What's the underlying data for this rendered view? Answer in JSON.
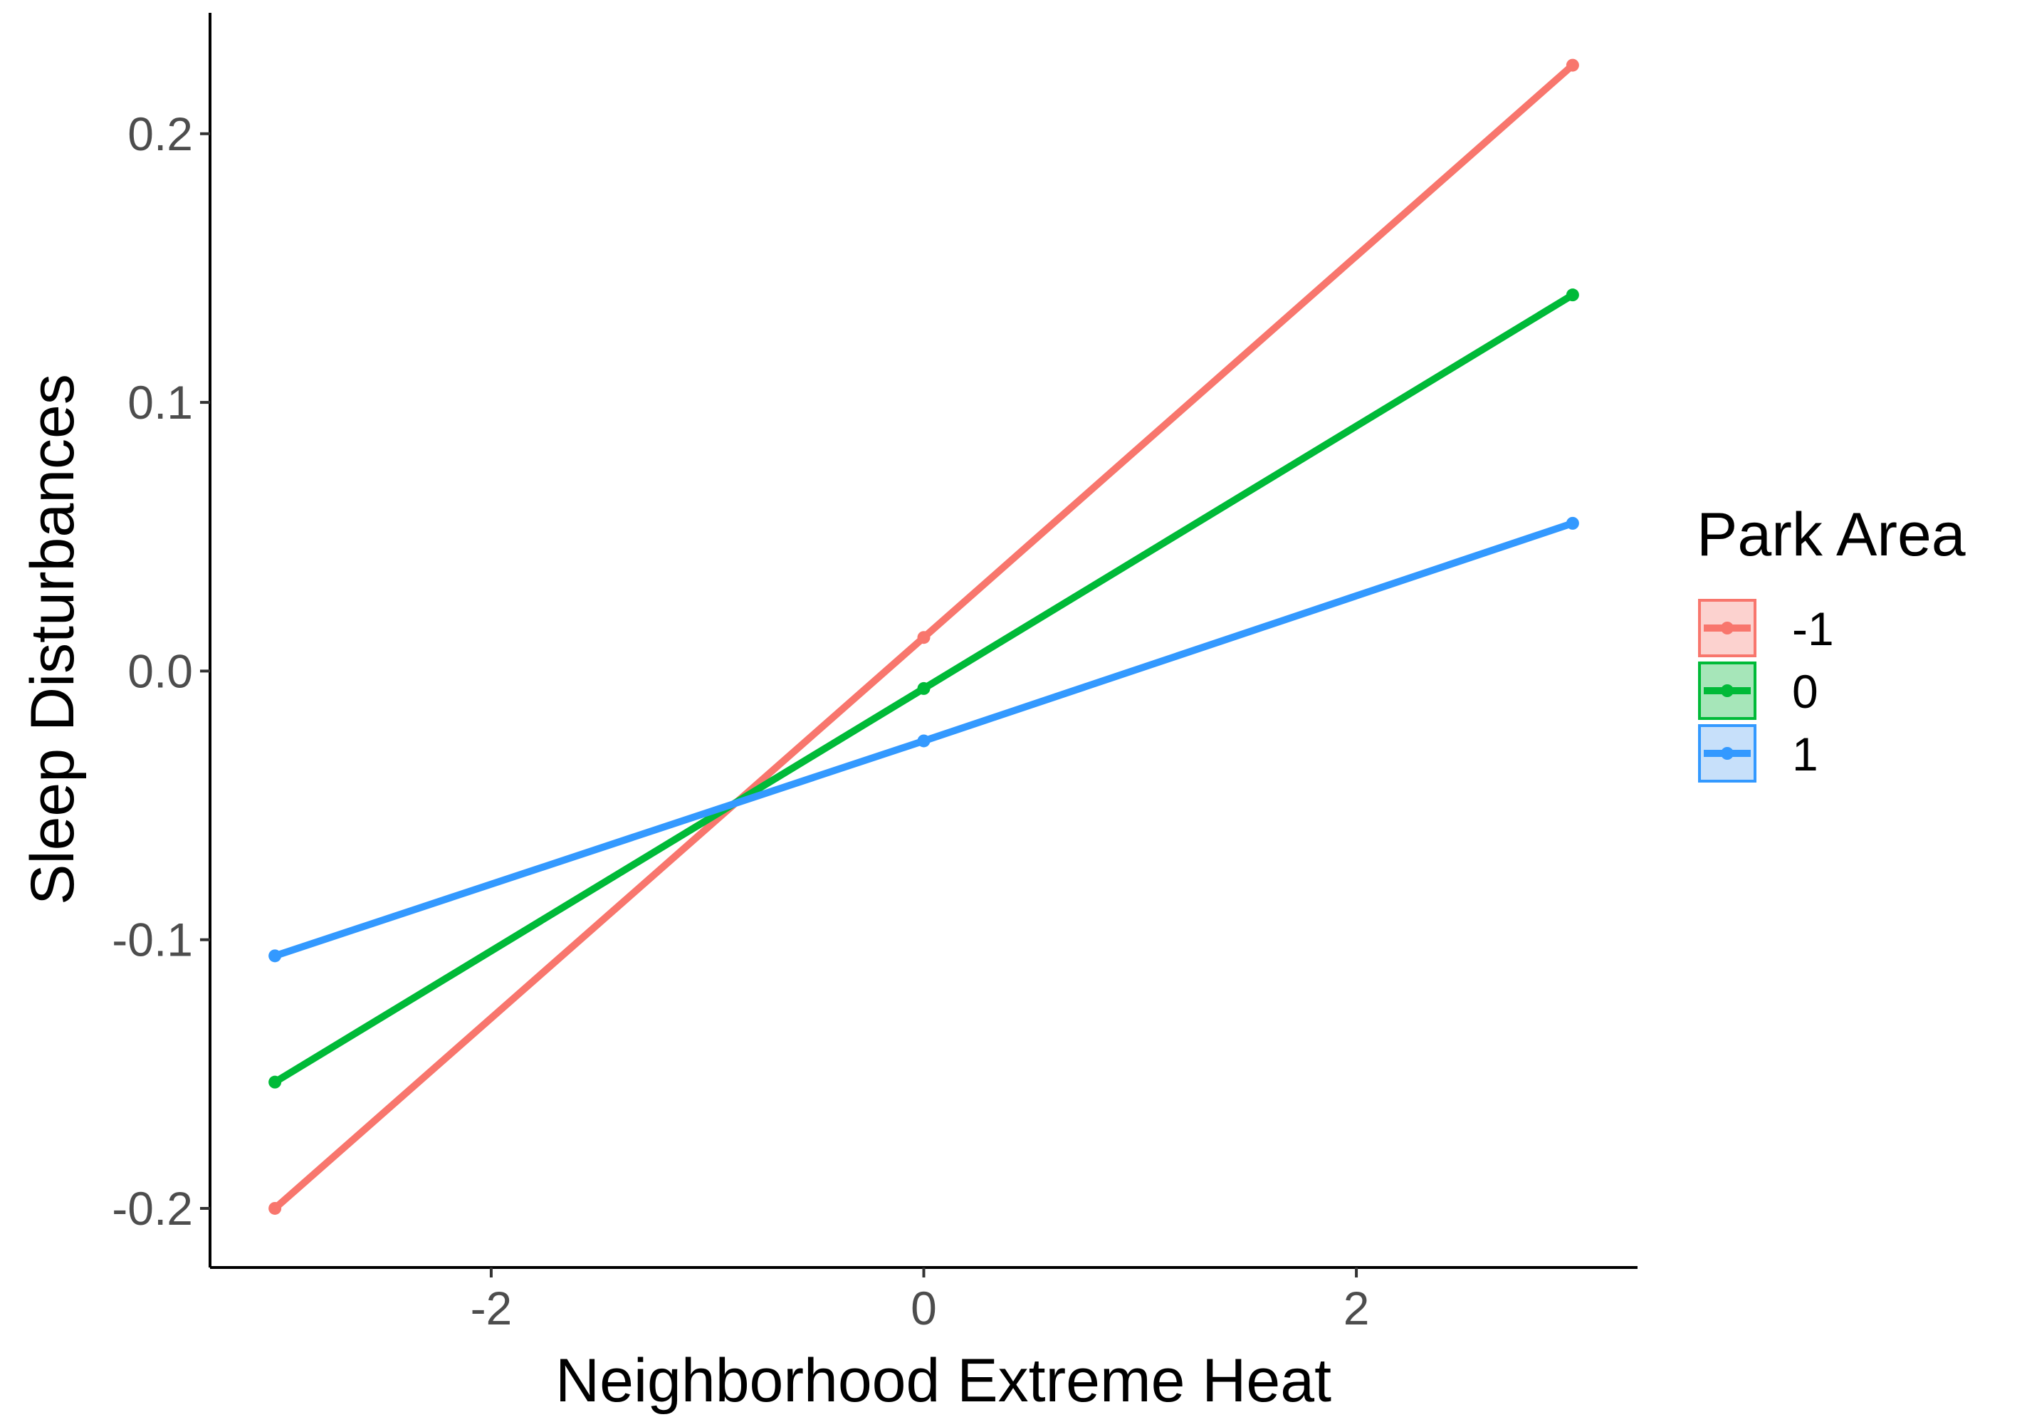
{
  "chart_data": {
    "type": "line",
    "title": "",
    "xlabel": "Neighborhood Extreme Heat",
    "ylabel": "Sleep Disturbances",
    "xlim": [
      -3.3,
      3.3
    ],
    "ylim": [
      -0.222,
      0.245
    ],
    "x_ticks": [
      -2,
      0,
      2
    ],
    "x_tick_labels": [
      "-2",
      "0",
      "2"
    ],
    "y_ticks": [
      -0.2,
      -0.1,
      0.0,
      0.1,
      0.2
    ],
    "y_tick_labels": [
      "-0.2",
      "-0.1",
      "0.0",
      "0.1",
      "0.2"
    ],
    "grid": false,
    "legend": {
      "title": "Park Area",
      "placement": "right"
    },
    "x": [
      -3,
      0,
      3
    ],
    "series": [
      {
        "name": "-1",
        "color": "#F8766D",
        "fill": "#FCD2CF",
        "values": [
          -0.2,
          0.0125,
          0.2255
        ]
      },
      {
        "name": "0",
        "color": "#00BA38",
        "fill": "#A6E6B9",
        "values": [
          -0.153,
          -0.0065,
          0.14
        ]
      },
      {
        "name": "1",
        "color": "#3399FF",
        "fill": "#C7E0FA",
        "values": [
          -0.106,
          -0.026,
          0.055
        ]
      }
    ]
  }
}
